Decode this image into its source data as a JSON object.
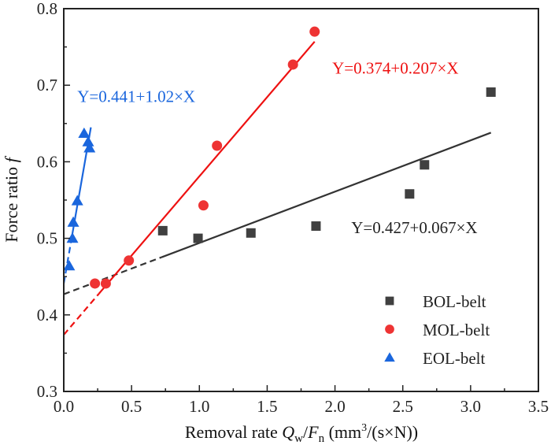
{
  "chart_data": {
    "type": "scatter",
    "title": "",
    "xlabel": "Removal rate Q_w/F_n (mm^3/(s×N))",
    "xlabel_parts": {
      "prefix": "Removal rate ",
      "q": "Q",
      "q_sub": "w",
      "slash": "/",
      "f": "F",
      "f_sub": "n",
      "unit_open": " (mm",
      "unit_sup": "3",
      "unit_close": "/(s×N))"
    },
    "ylabel": "Force ratio f",
    "ylabel_parts": {
      "text": "Force ratio ",
      "italic": "f"
    },
    "xlim": [
      0.0,
      3.5
    ],
    "ylim": [
      0.3,
      0.8
    ],
    "xticks": [
      "0.0",
      "0.5",
      "1.0",
      "1.5",
      "2.0",
      "2.5",
      "3.0",
      "3.5"
    ],
    "xtick_values": [
      0.0,
      0.5,
      1.0,
      1.5,
      2.0,
      2.5,
      3.0,
      3.5
    ],
    "yticks": [
      "0.3",
      "0.4",
      "0.5",
      "0.6",
      "0.7",
      "0.8"
    ],
    "ytick_values": [
      0.3,
      0.4,
      0.5,
      0.6,
      0.7,
      0.8
    ],
    "grid": false,
    "legend_position": "bottom-right",
    "series": [
      {
        "name": "BOL-belt",
        "marker": "square",
        "color": "#404040",
        "line_color": "#333333",
        "x": [
          0.73,
          0.99,
          1.38,
          1.86,
          2.55,
          2.66,
          3.15
        ],
        "y": [
          0.51,
          0.5,
          0.507,
          0.516,
          0.558,
          0.596,
          0.691
        ],
        "fit": {
          "intercept": 0.427,
          "slope": 0.067,
          "solid_range": [
            0.72,
            3.15
          ],
          "dashed_range": [
            0.0,
            0.72
          ]
        },
        "equation": "Y=0.427+0.067×X"
      },
      {
        "name": "MOL-belt",
        "marker": "circle",
        "color": "#ee3333",
        "line_color": "#ee1111",
        "x": [
          0.23,
          0.31,
          0.48,
          1.03,
          1.13,
          1.69,
          1.85
        ],
        "y": [
          0.441,
          0.441,
          0.471,
          0.543,
          0.621,
          0.727,
          0.77
        ],
        "fit": {
          "intercept": 0.374,
          "slope": 0.207,
          "solid_range": [
            0.26,
            1.85
          ],
          "dashed_range": [
            0.0,
            0.26
          ]
        },
        "equation": "Y=0.374+0.207×X"
      },
      {
        "name": "EOL-belt",
        "marker": "triangle",
        "color": "#1a66dd",
        "line_color": "#1a66dd",
        "x": [
          0.04,
          0.064,
          0.07,
          0.1,
          0.15,
          0.18,
          0.19
        ],
        "y": [
          0.464,
          0.5,
          0.521,
          0.549,
          0.637,
          0.626,
          0.618
        ],
        "fit": {
          "intercept": 0.441,
          "slope": 1.02,
          "solid_range": [
            0.06,
            0.2
          ],
          "dashed_range": [
            0.0,
            0.06
          ]
        },
        "equation": "Y=0.441+1.02×X"
      }
    ],
    "annotations": [
      {
        "text": "Y=0.441+1.02×X",
        "series": "EOL-belt",
        "x": 0.1,
        "y": 0.678
      },
      {
        "text": "Y=0.374+0.207×X",
        "series": "MOL-belt",
        "x": 1.98,
        "y": 0.715
      },
      {
        "text": "Y=0.427+0.067×X",
        "series": "BOL-belt",
        "x": 2.12,
        "y": 0.507
      }
    ]
  }
}
